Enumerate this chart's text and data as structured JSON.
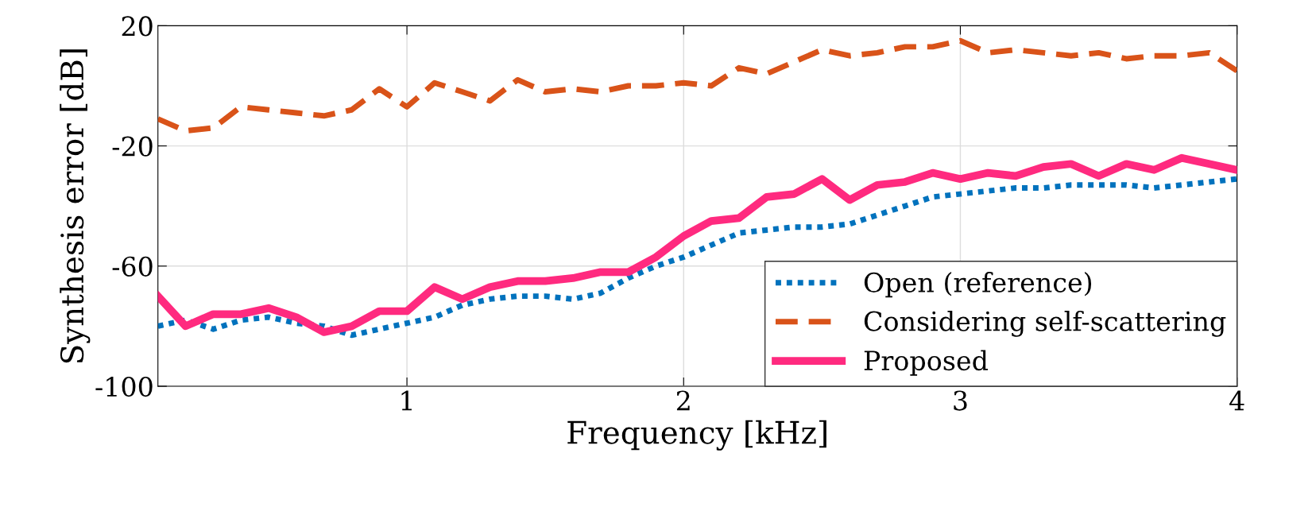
{
  "chart_data": {
    "type": "line",
    "xlabel": "Frequency [kHz]",
    "ylabel": "Synthesis error [dB]",
    "x": [
      0.1,
      0.2,
      0.3,
      0.4,
      0.5,
      0.6,
      0.7,
      0.8,
      0.9,
      1.0,
      1.1,
      1.2,
      1.3,
      1.4,
      1.5,
      1.6,
      1.7,
      1.8,
      1.9,
      2.0,
      2.1,
      2.2,
      2.3,
      2.4,
      2.5,
      2.6,
      2.7,
      2.8,
      2.9,
      3.0,
      3.1,
      3.2,
      3.3,
      3.4,
      3.5,
      3.6,
      3.7,
      3.8,
      3.9,
      4.0
    ],
    "series": [
      {
        "name": "Open (reference)",
        "color": "#0072bd",
        "line_style": "dotted",
        "values": [
          -80,
          -78,
          -81,
          -78,
          -77,
          -79,
          -80,
          -83,
          -81,
          -79,
          -77,
          -73,
          -71,
          -70,
          -70,
          -71,
          -69,
          -64,
          -60,
          -57,
          -53,
          -49,
          -48,
          -47,
          -47,
          -46,
          -43,
          -40,
          -37,
          -36,
          -35,
          -34,
          -34,
          -33,
          -33,
          -33,
          -34,
          -33,
          -32,
          -31
        ]
      },
      {
        "name": "Considering self-scattering",
        "color": "#d95319",
        "line_style": "dashed",
        "values": [
          -11,
          -15,
          -14,
          -7,
          -8,
          -9,
          -10,
          -8,
          -1,
          -7,
          1,
          -2,
          -5,
          2,
          -2,
          -1,
          -2,
          0,
          0,
          1,
          0,
          6,
          4,
          8,
          12,
          10,
          11,
          13,
          13,
          15,
          11,
          12,
          11,
          10,
          11,
          9,
          10,
          10,
          11,
          5
        ]
      },
      {
        "name": "Proposed",
        "color": "#ff2a7f",
        "line_style": "solid",
        "values": [
          -70,
          -80,
          -76,
          -76,
          -74,
          -77,
          -82,
          -80,
          -75,
          -75,
          -67,
          -71,
          -67,
          -65,
          -65,
          -64,
          -62,
          -62,
          -57,
          -50,
          -45,
          -44,
          -37,
          -36,
          -31,
          -38,
          -33,
          -32,
          -29,
          -31,
          -29,
          -30,
          -27,
          -26,
          -30,
          -26,
          -28,
          -24,
          -26,
          -28
        ]
      }
    ],
    "xlim": [
      0.1,
      4
    ],
    "xticks": [
      1,
      2,
      3,
      4
    ],
    "ylim": [
      -100,
      20
    ],
    "yticks": [
      -100,
      -60,
      -20,
      20
    ],
    "grid": true,
    "legend": "bottom right"
  }
}
